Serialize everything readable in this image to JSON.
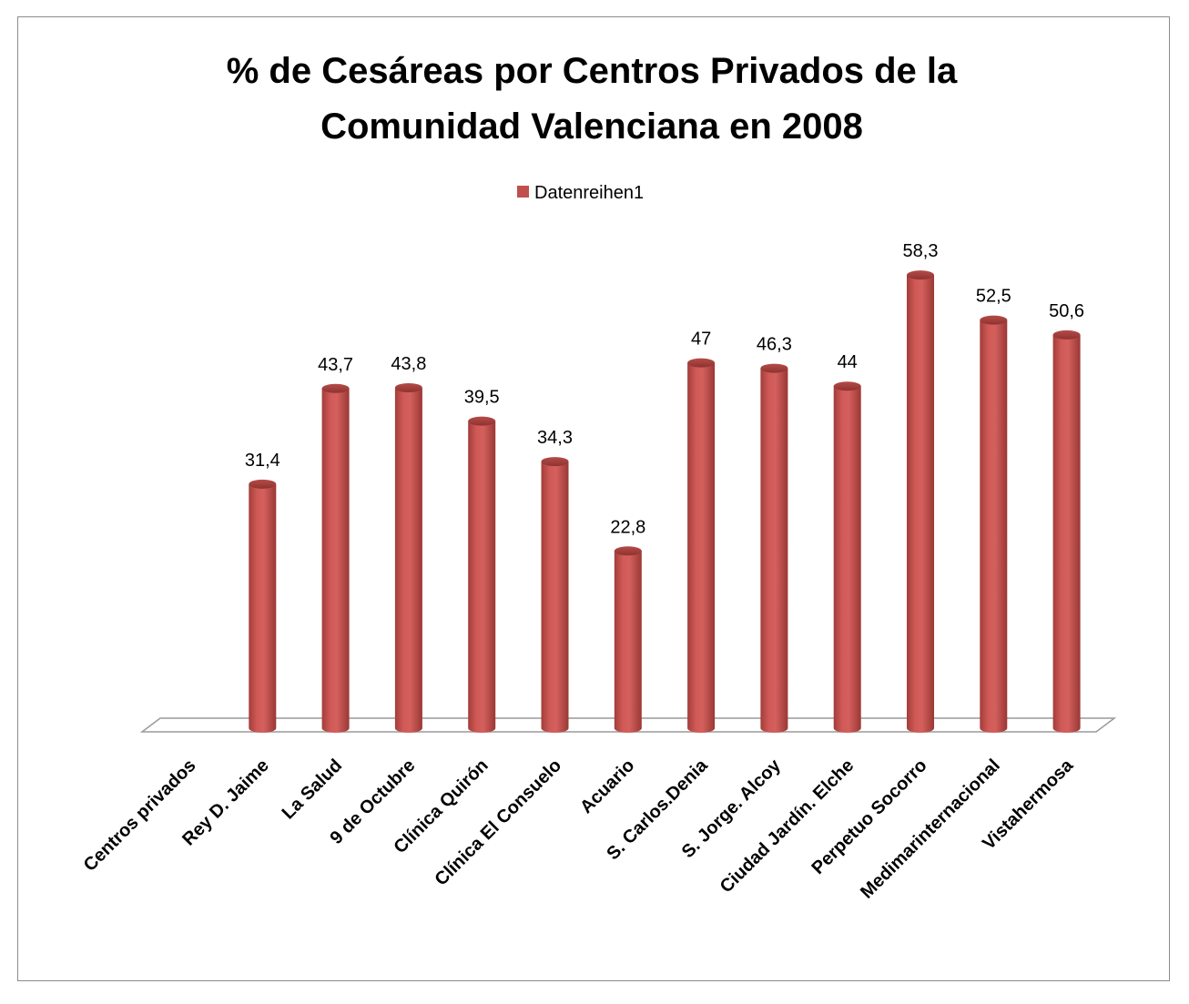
{
  "chart_data": {
    "type": "bar",
    "title_line1": "% de Cesáreas por Centros Privados de la",
    "title_line2": "Comunidad Valenciana en 2008",
    "legend_placement": "top",
    "grid": false,
    "xlabel": "",
    "ylabel": "",
    "ylim": [
      0,
      60
    ],
    "categories": [
      "Centros privados",
      "Rey D. Jaime",
      "La Salud",
      "9 de Octubre",
      "Clínica Quirón",
      "Clínica El Consuelo",
      "Acuario",
      "S. Carlos.Denia",
      "S. Jorge. Alcoy",
      "Ciudad Jardín. Elche",
      "Perpetuo Socorro",
      "Medimarinternacional",
      "Vistahermosa"
    ],
    "series": [
      {
        "name": "Datenreihen1",
        "color": "#c0504d",
        "values": [
          null,
          31.4,
          43.7,
          43.8,
          39.5,
          34.3,
          22.8,
          47,
          46.3,
          44,
          58.3,
          52.5,
          50.6
        ],
        "labels": [
          "",
          "31,4",
          "43,7",
          "43,8",
          "39,5",
          "34,3",
          "22,8",
          "47",
          "46,3",
          "44",
          "58,3",
          "52,5",
          "50,6"
        ]
      }
    ]
  }
}
